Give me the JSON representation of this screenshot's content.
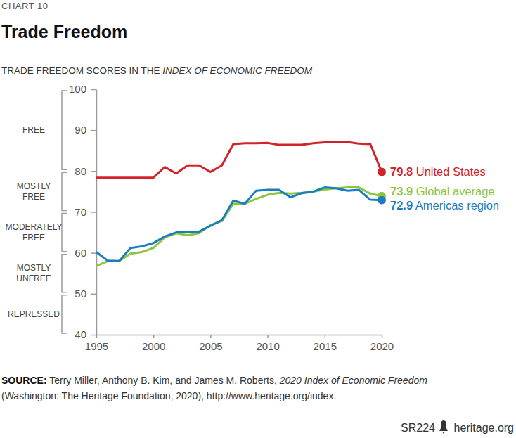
{
  "chart_data": {
    "type": "line",
    "label": "CHART 10",
    "title": "Trade Freedom",
    "subtitle": [
      "TRADE FREEDOM SCORES IN THE ",
      "INDEX OF ECONOMIC FREEDOM"
    ],
    "x": [
      1995,
      1996,
      1997,
      1998,
      1999,
      2000,
      2001,
      2002,
      2003,
      2004,
      2005,
      2006,
      2007,
      2008,
      2009,
      2010,
      2011,
      2012,
      2013,
      2014,
      2015,
      2016,
      2017,
      2018,
      2019,
      2020
    ],
    "series": [
      {
        "name": "United States",
        "color": "#d2232a",
        "values": [
          78.4,
          78.4,
          78.4,
          78.4,
          78.4,
          78.4,
          81.0,
          79.4,
          81.4,
          81.4,
          79.8,
          81.4,
          86.6,
          86.8,
          86.8,
          86.9,
          86.4,
          86.4,
          86.4,
          86.8,
          87.0,
          87.0,
          87.1,
          86.7,
          86.6,
          79.8
        ]
      },
      {
        "name": "Global average",
        "color": "#8cc63f",
        "values": [
          56.8,
          58.0,
          58.0,
          59.8,
          60.2,
          61.2,
          63.8,
          64.8,
          64.3,
          64.8,
          66.8,
          67.8,
          72.0,
          72.0,
          73.2,
          74.2,
          74.7,
          74.5,
          74.7,
          75.0,
          75.5,
          75.8,
          76.0,
          76.0,
          74.5,
          73.9
        ]
      },
      {
        "name": "Americas region",
        "color": "#1b7dc1",
        "values": [
          60.2,
          58.1,
          58.0,
          61.2,
          61.6,
          62.4,
          64.0,
          65.0,
          65.2,
          65.2,
          66.6,
          68.0,
          72.8,
          72.0,
          75.2,
          75.4,
          75.4,
          73.6,
          74.6,
          75.0,
          76.0,
          75.8,
          75.2,
          75.4,
          73.0,
          72.9
        ]
      }
    ],
    "xlim": [
      1995,
      2020
    ],
    "xticks": [
      1995,
      2000,
      2005,
      2010,
      2015,
      2020
    ],
    "ylim": [
      40,
      100
    ],
    "yticks": [
      40,
      50,
      60,
      70,
      80,
      90,
      100
    ],
    "grid": false,
    "bands": [
      {
        "label": [
          "FREE"
        ],
        "from": 80,
        "to": 100
      },
      {
        "label": [
          "MOSTLY",
          "FREE"
        ],
        "from": 70,
        "to": 80
      },
      {
        "label": [
          "MODERATELY",
          "FREE"
        ],
        "from": 60,
        "to": 70
      },
      {
        "label": [
          "MOSTLY",
          "UNFREE"
        ],
        "from": 50,
        "to": 60
      },
      {
        "label": [
          "REPRESSED"
        ],
        "from": 40,
        "to": 50
      }
    ],
    "source": [
      [
        "SOURCE:",
        " Terry Miller, Anthony B. Kim, and James M. Roberts, ",
        "2020 Index of Economic Freedom"
      ],
      [
        "(Washington: The Heritage Foundation, 2020), http://www.heritage.org/index."
      ]
    ],
    "footer": [
      "SR224",
      "heritage.org"
    ]
  }
}
